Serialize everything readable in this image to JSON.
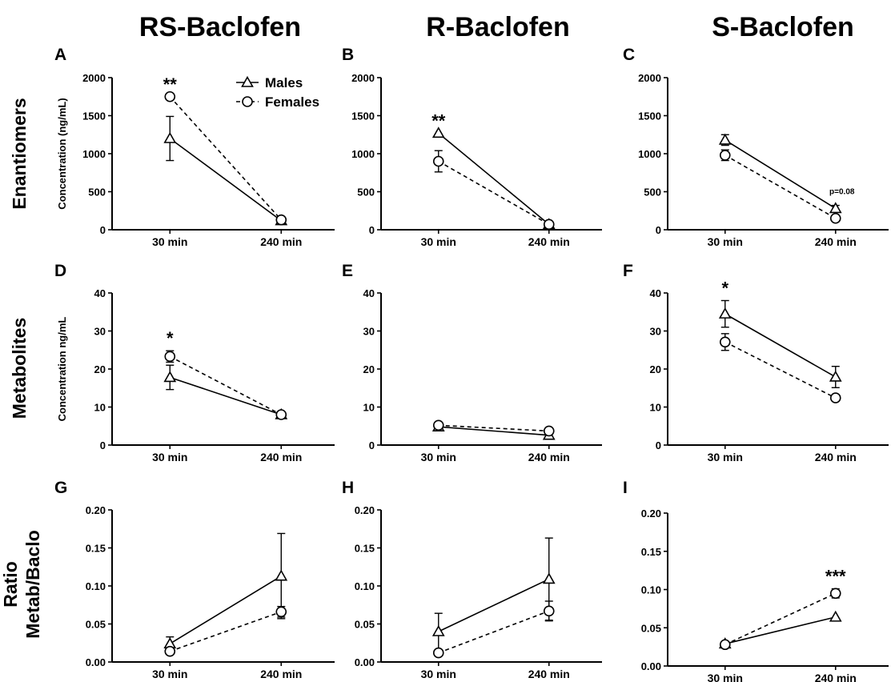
{
  "column_titles": [
    "RS-Baclofen",
    "R-Baclofen",
    "S-Baclofen"
  ],
  "row_titles": [
    [
      "Enantiomers"
    ],
    [
      "Metabolites"
    ],
    [
      "Ratio",
      "Metab/Baclo"
    ]
  ],
  "legend": {
    "males": "Males",
    "females": "Females"
  },
  "chart_data": [
    {
      "panel": "A",
      "type": "line",
      "categories": [
        "30 min",
        "240 min"
      ],
      "ylabel": "Concentration (ng/mL)",
      "ylim": [
        0,
        2000
      ],
      "yticks": [
        "0",
        "500",
        "1000",
        "1500",
        "2000"
      ],
      "series": [
        {
          "name": "Males",
          "values": [
            1200,
            120
          ],
          "errors": [
            290,
            0
          ]
        },
        {
          "name": "Females",
          "values": [
            1750,
            130
          ],
          "errors": [
            0,
            0
          ]
        }
      ],
      "annotations": [
        {
          "text": "**",
          "category": "30 min"
        }
      ]
    },
    {
      "panel": "B",
      "type": "line",
      "categories": [
        "30 min",
        "240 min"
      ],
      "ylabel": "",
      "ylim": [
        0,
        2000
      ],
      "yticks": [
        "0",
        "500",
        "1000",
        "1500",
        "2000"
      ],
      "series": [
        {
          "name": "Males",
          "values": [
            1270,
            70
          ],
          "errors": [
            0,
            0
          ]
        },
        {
          "name": "Females",
          "values": [
            900,
            70
          ],
          "errors": [
            140,
            0
          ]
        }
      ],
      "annotations": [
        {
          "text": "**",
          "category": "30 min"
        }
      ]
    },
    {
      "panel": "C",
      "type": "line",
      "categories": [
        "30 min",
        "240 min"
      ],
      "ylabel": "",
      "ylim": [
        0,
        2000
      ],
      "yticks": [
        "0",
        "500",
        "1000",
        "1500",
        "2000"
      ],
      "series": [
        {
          "name": "Males",
          "values": [
            1180,
            280
          ],
          "errors": [
            70,
            40
          ]
        },
        {
          "name": "Females",
          "values": [
            980,
            150
          ],
          "errors": [
            70,
            0
          ]
        }
      ],
      "annotations": [
        {
          "text": "p=0.08",
          "category": "240 min"
        }
      ]
    },
    {
      "panel": "D",
      "type": "line",
      "categories": [
        "30 min",
        "240 min"
      ],
      "ylabel": "Concentration ng/mL",
      "ylim": [
        0,
        40
      ],
      "yticks": [
        "0",
        "10",
        "20",
        "30",
        "40"
      ],
      "series": [
        {
          "name": "Males",
          "values": [
            17.8,
            8.0
          ],
          "errors": [
            3.2,
            0
          ]
        },
        {
          "name": "Females",
          "values": [
            23.3,
            8.0
          ],
          "errors": [
            1.5,
            0
          ]
        }
      ],
      "annotations": [
        {
          "text": "*",
          "category": "30 min"
        }
      ]
    },
    {
      "panel": "E",
      "type": "line",
      "categories": [
        "30 min",
        "240 min"
      ],
      "ylabel": "",
      "ylim": [
        0,
        40
      ],
      "yticks": [
        "0",
        "10",
        "20",
        "30",
        "40"
      ],
      "series": [
        {
          "name": "Males",
          "values": [
            4.8,
            2.6
          ],
          "errors": [
            0,
            0
          ]
        },
        {
          "name": "Females",
          "values": [
            5.2,
            3.7
          ],
          "errors": [
            0,
            0
          ]
        }
      ],
      "annotations": []
    },
    {
      "panel": "F",
      "type": "line",
      "categories": [
        "30 min",
        "240 min"
      ],
      "ylabel": "",
      "ylim": [
        0,
        40
      ],
      "yticks": [
        "0",
        "10",
        "20",
        "30",
        "40"
      ],
      "series": [
        {
          "name": "Males",
          "values": [
            34.5,
            17.9
          ],
          "errors": [
            3.5,
            2.8
          ]
        },
        {
          "name": "Females",
          "values": [
            27.1,
            12.4
          ],
          "errors": [
            2.2,
            0
          ]
        }
      ],
      "annotations": [
        {
          "text": "*",
          "category": "30 min"
        }
      ]
    },
    {
      "panel": "G",
      "type": "line",
      "categories": [
        "30 min",
        "240 min"
      ],
      "ylabel": "",
      "ylim": [
        0,
        0.2
      ],
      "yticks": [
        "0.00",
        "0.05",
        "0.10",
        "0.15",
        "0.20"
      ],
      "series": [
        {
          "name": "Males",
          "values": [
            0.024,
            0.113
          ],
          "errors": [
            0.009,
            0.056
          ]
        },
        {
          "name": "Females",
          "values": [
            0.014,
            0.066
          ],
          "errors": [
            0,
            0.007
          ]
        }
      ],
      "annotations": []
    },
    {
      "panel": "H",
      "type": "line",
      "categories": [
        "30 min",
        "240 min"
      ],
      "ylabel": "",
      "ylim": [
        0,
        0.2
      ],
      "yticks": [
        "0.00",
        "0.05",
        "0.10",
        "0.15",
        "0.20"
      ],
      "series": [
        {
          "name": "Males",
          "values": [
            0.04,
            0.109
          ],
          "errors": [
            0.024,
            0.054
          ]
        },
        {
          "name": "Females",
          "values": [
            0.012,
            0.067
          ],
          "errors": [
            0,
            0.013
          ]
        }
      ],
      "annotations": []
    },
    {
      "panel": "I",
      "type": "line",
      "categories": [
        "30 min",
        "240 min"
      ],
      "ylabel": "",
      "ylim": [
        0,
        0.2
      ],
      "yticks": [
        "0.00",
        "0.05",
        "0.10",
        "0.15",
        "0.20"
      ],
      "series": [
        {
          "name": "Males",
          "values": [
            0.029,
            0.064
          ],
          "errors": [
            0,
            0
          ]
        },
        {
          "name": "Females",
          "values": [
            0.028,
            0.095
          ],
          "errors": [
            0,
            0.006
          ]
        }
      ],
      "annotations": [
        {
          "text": "***",
          "category": "240 min"
        }
      ]
    }
  ]
}
